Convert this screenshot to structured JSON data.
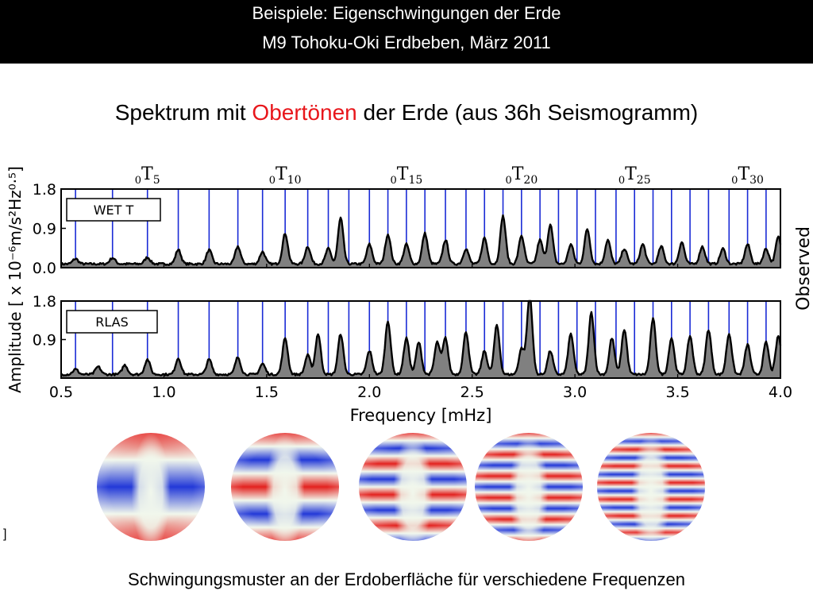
{
  "header": {
    "line1": "Beispiele: Eigenschwingungen der Erde",
    "line2": "M9 Tohoku-Oki Erdbeben, März 2011"
  },
  "subtitle": {
    "before": "Spektrum mit ",
    "highlight": "Obertönen",
    "after": " der Erde (aus 36h Seismogramm)",
    "highlight_color": "#e8161b"
  },
  "caption": "Schwingungsmuster an der Erdoberfläche für verschiedene Frequenzen",
  "edge_mark": "]",
  "chart_data": {
    "type": "area",
    "xlabel": "Frequency [mHz]",
    "ylabel": "Amplitude [ x 10⁻⁶m/s²Hz⁰·⁵]",
    "side_label": "Observed",
    "xlim": [
      0.5,
      4.0
    ],
    "xticks": [
      0.5,
      1.0,
      1.5,
      2.0,
      2.5,
      3.0,
      3.5,
      4.0
    ],
    "xtick_labels": [
      "0.5",
      "1.0",
      "1.5",
      "2.0",
      "2.5",
      "3.0",
      "3.5",
      "4.0"
    ],
    "mode_labels": [
      {
        "text": "0T5",
        "x": 0.92
      },
      {
        "text": "0T10",
        "x": 1.59
      },
      {
        "text": "0T15",
        "x": 2.18
      },
      {
        "text": "0T20",
        "x": 2.74
      },
      {
        "text": "0T25",
        "x": 3.29
      },
      {
        "text": "0T30",
        "x": 3.84
      }
    ],
    "mode_lines_mhz": [
      0.57,
      0.75,
      0.92,
      1.07,
      1.22,
      1.36,
      1.48,
      1.59,
      1.7,
      1.8,
      1.9,
      2.0,
      2.09,
      2.18,
      2.27,
      2.37,
      2.47,
      2.56,
      2.65,
      2.74,
      2.83,
      2.92,
      3.01,
      3.1,
      3.2,
      3.29,
      3.38,
      3.47,
      3.56,
      3.65,
      3.75,
      3.84,
      3.93
    ],
    "line_color": "#1a2bd6",
    "panels": [
      {
        "label": "WET T",
        "ylim": [
          0.0,
          1.8
        ],
        "yticks": [
          0.0,
          0.9,
          1.8
        ],
        "ytick_labels": [
          "0.0",
          "0.9",
          "1.8"
        ],
        "peaks": [
          {
            "x": 0.57,
            "y": 0.12
          },
          {
            "x": 0.75,
            "y": 0.14
          },
          {
            "x": 0.92,
            "y": 0.15
          },
          {
            "x": 1.07,
            "y": 0.33
          },
          {
            "x": 1.22,
            "y": 0.32
          },
          {
            "x": 1.36,
            "y": 0.4
          },
          {
            "x": 1.48,
            "y": 0.28
          },
          {
            "x": 1.59,
            "y": 0.7
          },
          {
            "x": 1.7,
            "y": 0.4
          },
          {
            "x": 1.8,
            "y": 0.35
          },
          {
            "x": 1.86,
            "y": 1.05
          },
          {
            "x": 2.0,
            "y": 0.45
          },
          {
            "x": 2.09,
            "y": 0.68
          },
          {
            "x": 2.18,
            "y": 0.45
          },
          {
            "x": 2.27,
            "y": 0.7
          },
          {
            "x": 2.37,
            "y": 0.55
          },
          {
            "x": 2.47,
            "y": 0.35
          },
          {
            "x": 2.56,
            "y": 0.6
          },
          {
            "x": 2.65,
            "y": 1.1
          },
          {
            "x": 2.74,
            "y": 0.65
          },
          {
            "x": 2.83,
            "y": 0.55
          },
          {
            "x": 2.88,
            "y": 0.9
          },
          {
            "x": 2.98,
            "y": 0.45
          },
          {
            "x": 3.06,
            "y": 0.8
          },
          {
            "x": 3.16,
            "y": 0.55
          },
          {
            "x": 3.24,
            "y": 0.35
          },
          {
            "x": 3.33,
            "y": 0.45
          },
          {
            "x": 3.42,
            "y": 0.4
          },
          {
            "x": 3.52,
            "y": 0.5
          },
          {
            "x": 3.62,
            "y": 0.4
          },
          {
            "x": 3.72,
            "y": 0.35
          },
          {
            "x": 3.84,
            "y": 0.45
          },
          {
            "x": 3.93,
            "y": 0.35
          },
          {
            "x": 3.99,
            "y": 0.62
          }
        ]
      },
      {
        "label": "RLAS",
        "ylim": [
          0.0,
          1.8
        ],
        "yticks": [
          0.9,
          1.8
        ],
        "ytick_labels": [
          "0.9",
          "1.8"
        ],
        "peaks": [
          {
            "x": 0.57,
            "y": 0.12
          },
          {
            "x": 0.68,
            "y": 0.18
          },
          {
            "x": 0.81,
            "y": 0.22
          },
          {
            "x": 0.92,
            "y": 0.35
          },
          {
            "x": 1.07,
            "y": 0.38
          },
          {
            "x": 1.22,
            "y": 0.35
          },
          {
            "x": 1.36,
            "y": 0.4
          },
          {
            "x": 1.48,
            "y": 0.25
          },
          {
            "x": 1.59,
            "y": 0.85
          },
          {
            "x": 1.7,
            "y": 0.45
          },
          {
            "x": 1.75,
            "y": 0.95
          },
          {
            "x": 1.86,
            "y": 0.95
          },
          {
            "x": 2.0,
            "y": 0.55
          },
          {
            "x": 2.09,
            "y": 1.25
          },
          {
            "x": 2.18,
            "y": 0.85
          },
          {
            "x": 2.24,
            "y": 0.75
          },
          {
            "x": 2.33,
            "y": 0.75
          },
          {
            "x": 2.37,
            "y": 0.85
          },
          {
            "x": 2.47,
            "y": 1.0
          },
          {
            "x": 2.56,
            "y": 0.55
          },
          {
            "x": 2.62,
            "y": 1.15
          },
          {
            "x": 2.74,
            "y": 0.6
          },
          {
            "x": 2.78,
            "y": 1.85
          },
          {
            "x": 2.88,
            "y": 0.55
          },
          {
            "x": 2.98,
            "y": 0.95
          },
          {
            "x": 3.08,
            "y": 1.45
          },
          {
            "x": 3.18,
            "y": 0.85
          },
          {
            "x": 3.24,
            "y": 1.05
          },
          {
            "x": 3.38,
            "y": 1.3
          },
          {
            "x": 3.47,
            "y": 0.85
          },
          {
            "x": 3.56,
            "y": 0.9
          },
          {
            "x": 3.65,
            "y": 1.05
          },
          {
            "x": 3.75,
            "y": 0.95
          },
          {
            "x": 3.84,
            "y": 0.7
          },
          {
            "x": 3.93,
            "y": 0.75
          },
          {
            "x": 3.99,
            "y": 0.9
          }
        ]
      }
    ]
  },
  "spheres": [
    {
      "name": "mode-pattern-1",
      "bands": 2
    },
    {
      "name": "mode-pattern-2",
      "bands": 4
    },
    {
      "name": "mode-pattern-3",
      "bands": 7
    },
    {
      "name": "mode-pattern-4",
      "bands": 10
    },
    {
      "name": "mode-pattern-5",
      "bands": 13
    }
  ],
  "colors": {
    "header_bg": "#000000",
    "header_text": "#ffffff",
    "mode_line": "#1a2bd6",
    "fill": "#808080",
    "sphere_red": "#e3221f",
    "sphere_blue": "#2339d8",
    "sphere_center": "#f1f7ec"
  }
}
